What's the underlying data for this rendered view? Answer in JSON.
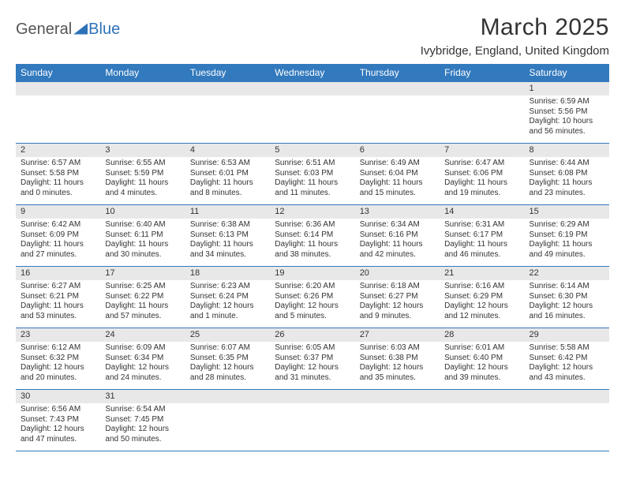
{
  "logo": {
    "part1": "General",
    "part2": "Blue"
  },
  "title": "March 2025",
  "location": "Ivybridge, England, United Kingdom",
  "colors": {
    "header_bg": "#3279bd",
    "header_fg": "#ffffff",
    "daynum_bg": "#e8e8e8",
    "border": "#3279bd",
    "text": "#333333",
    "logo_gray": "#555555",
    "logo_blue": "#2d72b8",
    "page_bg": "#ffffff"
  },
  "typography": {
    "title_fontsize": 30,
    "location_fontsize": 15,
    "header_fontsize": 12,
    "daynum_fontsize": 11,
    "body_fontsize": 10
  },
  "weekday_headers": [
    "Sunday",
    "Monday",
    "Tuesday",
    "Wednesday",
    "Thursday",
    "Friday",
    "Saturday"
  ],
  "weeks": [
    [
      null,
      null,
      null,
      null,
      null,
      null,
      {
        "n": "1",
        "sr": "Sunrise: 6:59 AM",
        "ss": "Sunset: 5:56 PM",
        "dl": "Daylight: 10 hours and 56 minutes."
      }
    ],
    [
      {
        "n": "2",
        "sr": "Sunrise: 6:57 AM",
        "ss": "Sunset: 5:58 PM",
        "dl": "Daylight: 11 hours and 0 minutes."
      },
      {
        "n": "3",
        "sr": "Sunrise: 6:55 AM",
        "ss": "Sunset: 5:59 PM",
        "dl": "Daylight: 11 hours and 4 minutes."
      },
      {
        "n": "4",
        "sr": "Sunrise: 6:53 AM",
        "ss": "Sunset: 6:01 PM",
        "dl": "Daylight: 11 hours and 8 minutes."
      },
      {
        "n": "5",
        "sr": "Sunrise: 6:51 AM",
        "ss": "Sunset: 6:03 PM",
        "dl": "Daylight: 11 hours and 11 minutes."
      },
      {
        "n": "6",
        "sr": "Sunrise: 6:49 AM",
        "ss": "Sunset: 6:04 PM",
        "dl": "Daylight: 11 hours and 15 minutes."
      },
      {
        "n": "7",
        "sr": "Sunrise: 6:47 AM",
        "ss": "Sunset: 6:06 PM",
        "dl": "Daylight: 11 hours and 19 minutes."
      },
      {
        "n": "8",
        "sr": "Sunrise: 6:44 AM",
        "ss": "Sunset: 6:08 PM",
        "dl": "Daylight: 11 hours and 23 minutes."
      }
    ],
    [
      {
        "n": "9",
        "sr": "Sunrise: 6:42 AM",
        "ss": "Sunset: 6:09 PM",
        "dl": "Daylight: 11 hours and 27 minutes."
      },
      {
        "n": "10",
        "sr": "Sunrise: 6:40 AM",
        "ss": "Sunset: 6:11 PM",
        "dl": "Daylight: 11 hours and 30 minutes."
      },
      {
        "n": "11",
        "sr": "Sunrise: 6:38 AM",
        "ss": "Sunset: 6:13 PM",
        "dl": "Daylight: 11 hours and 34 minutes."
      },
      {
        "n": "12",
        "sr": "Sunrise: 6:36 AM",
        "ss": "Sunset: 6:14 PM",
        "dl": "Daylight: 11 hours and 38 minutes."
      },
      {
        "n": "13",
        "sr": "Sunrise: 6:34 AM",
        "ss": "Sunset: 6:16 PM",
        "dl": "Daylight: 11 hours and 42 minutes."
      },
      {
        "n": "14",
        "sr": "Sunrise: 6:31 AM",
        "ss": "Sunset: 6:17 PM",
        "dl": "Daylight: 11 hours and 46 minutes."
      },
      {
        "n": "15",
        "sr": "Sunrise: 6:29 AM",
        "ss": "Sunset: 6:19 PM",
        "dl": "Daylight: 11 hours and 49 minutes."
      }
    ],
    [
      {
        "n": "16",
        "sr": "Sunrise: 6:27 AM",
        "ss": "Sunset: 6:21 PM",
        "dl": "Daylight: 11 hours and 53 minutes."
      },
      {
        "n": "17",
        "sr": "Sunrise: 6:25 AM",
        "ss": "Sunset: 6:22 PM",
        "dl": "Daylight: 11 hours and 57 minutes."
      },
      {
        "n": "18",
        "sr": "Sunrise: 6:23 AM",
        "ss": "Sunset: 6:24 PM",
        "dl": "Daylight: 12 hours and 1 minute."
      },
      {
        "n": "19",
        "sr": "Sunrise: 6:20 AM",
        "ss": "Sunset: 6:26 PM",
        "dl": "Daylight: 12 hours and 5 minutes."
      },
      {
        "n": "20",
        "sr": "Sunrise: 6:18 AM",
        "ss": "Sunset: 6:27 PM",
        "dl": "Daylight: 12 hours and 9 minutes."
      },
      {
        "n": "21",
        "sr": "Sunrise: 6:16 AM",
        "ss": "Sunset: 6:29 PM",
        "dl": "Daylight: 12 hours and 12 minutes."
      },
      {
        "n": "22",
        "sr": "Sunrise: 6:14 AM",
        "ss": "Sunset: 6:30 PM",
        "dl": "Daylight: 12 hours and 16 minutes."
      }
    ],
    [
      {
        "n": "23",
        "sr": "Sunrise: 6:12 AM",
        "ss": "Sunset: 6:32 PM",
        "dl": "Daylight: 12 hours and 20 minutes."
      },
      {
        "n": "24",
        "sr": "Sunrise: 6:09 AM",
        "ss": "Sunset: 6:34 PM",
        "dl": "Daylight: 12 hours and 24 minutes."
      },
      {
        "n": "25",
        "sr": "Sunrise: 6:07 AM",
        "ss": "Sunset: 6:35 PM",
        "dl": "Daylight: 12 hours and 28 minutes."
      },
      {
        "n": "26",
        "sr": "Sunrise: 6:05 AM",
        "ss": "Sunset: 6:37 PM",
        "dl": "Daylight: 12 hours and 31 minutes."
      },
      {
        "n": "27",
        "sr": "Sunrise: 6:03 AM",
        "ss": "Sunset: 6:38 PM",
        "dl": "Daylight: 12 hours and 35 minutes."
      },
      {
        "n": "28",
        "sr": "Sunrise: 6:01 AM",
        "ss": "Sunset: 6:40 PM",
        "dl": "Daylight: 12 hours and 39 minutes."
      },
      {
        "n": "29",
        "sr": "Sunrise: 5:58 AM",
        "ss": "Sunset: 6:42 PM",
        "dl": "Daylight: 12 hours and 43 minutes."
      }
    ],
    [
      {
        "n": "30",
        "sr": "Sunrise: 6:56 AM",
        "ss": "Sunset: 7:43 PM",
        "dl": "Daylight: 12 hours and 47 minutes."
      },
      {
        "n": "31",
        "sr": "Sunrise: 6:54 AM",
        "ss": "Sunset: 7:45 PM",
        "dl": "Daylight: 12 hours and 50 minutes."
      },
      null,
      null,
      null,
      null,
      null
    ]
  ]
}
